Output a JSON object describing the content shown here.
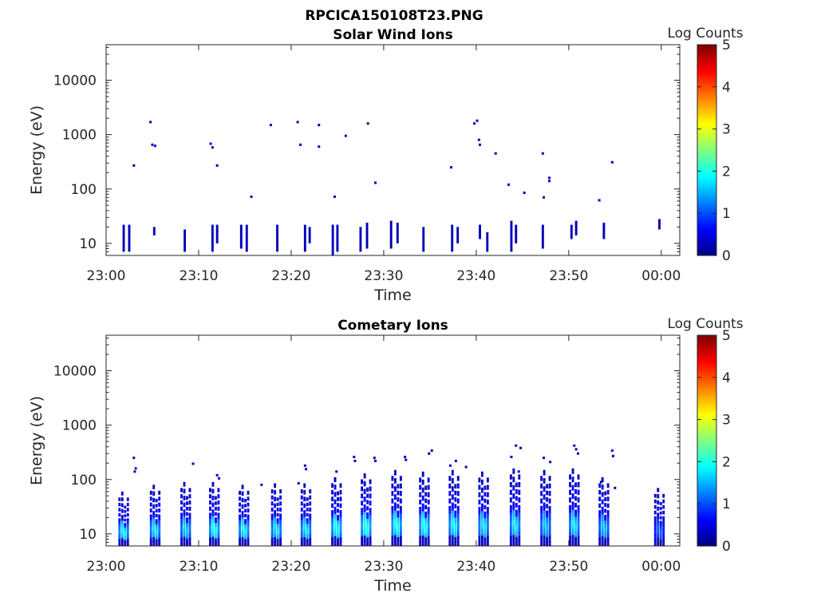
{
  "figure": {
    "title": "RPCICA150108T23.PNG"
  },
  "colors": {
    "axis": "#262626",
    "colormap": "jet"
  },
  "chart_data": [
    {
      "type": "heatmap",
      "title": "Solar Wind Ions",
      "xlabel": "Time",
      "ylabel": "Energy (eV)",
      "yscale": "log",
      "ylim": [
        6,
        45000
      ],
      "xlim_minutes": [
        0,
        62
      ],
      "xticks": [
        {
          "value": 0,
          "label": "23:00"
        },
        {
          "value": 10,
          "label": "23:10"
        },
        {
          "value": 20,
          "label": "23:20"
        },
        {
          "value": 30,
          "label": "23:30"
        },
        {
          "value": 40,
          "label": "23:40"
        },
        {
          "value": 50,
          "label": "23:50"
        },
        {
          "value": 60,
          "label": "00:00"
        }
      ],
      "yticks": [
        {
          "value": 10,
          "label": "10"
        },
        {
          "value": 100,
          "label": "100"
        },
        {
          "value": 1000,
          "label": "1000"
        },
        {
          "value": 10000,
          "label": "10000"
        }
      ],
      "colorbar": {
        "label": "Log Counts",
        "min": 0,
        "max": 5,
        "ticks": [
          {
            "value": 0,
            "label": "0"
          },
          {
            "value": 1,
            "label": "1"
          },
          {
            "value": 2,
            "label": "2"
          },
          {
            "value": 3,
            "label": "3"
          },
          {
            "value": 4,
            "label": "4"
          },
          {
            "value": 5,
            "label": "5"
          }
        ]
      },
      "bursts": [
        {
          "t": 1.9,
          "e_lo": 7,
          "e_hi": 22,
          "c": 0.3
        },
        {
          "t": 2.5,
          "e_lo": 7,
          "e_hi": 22,
          "c": 0.3
        },
        {
          "t": 5.2,
          "e_lo": 14,
          "e_hi": 20,
          "c": 0.3
        },
        {
          "t": 8.5,
          "e_lo": 7,
          "e_hi": 18,
          "c": 0.3
        },
        {
          "t": 11.5,
          "e_lo": 7,
          "e_hi": 22,
          "c": 0.3
        },
        {
          "t": 12.0,
          "e_lo": 10,
          "e_hi": 22,
          "c": 0.3
        },
        {
          "t": 14.6,
          "e_lo": 8,
          "e_hi": 22,
          "c": 0.3
        },
        {
          "t": 15.2,
          "e_lo": 7,
          "e_hi": 22,
          "c": 0.3
        },
        {
          "t": 18.5,
          "e_lo": 7,
          "e_hi": 22,
          "c": 0.3
        },
        {
          "t": 21.5,
          "e_lo": 7,
          "e_hi": 22,
          "c": 0.3
        },
        {
          "t": 22.0,
          "e_lo": 10,
          "e_hi": 20,
          "c": 0.3
        },
        {
          "t": 24.5,
          "e_lo": 6,
          "e_hi": 22,
          "c": 0.35
        },
        {
          "t": 25.0,
          "e_lo": 7,
          "e_hi": 22,
          "c": 0.3
        },
        {
          "t": 27.5,
          "e_lo": 7,
          "e_hi": 20,
          "c": 0.3
        },
        {
          "t": 28.2,
          "e_lo": 8,
          "e_hi": 24,
          "c": 0.3
        },
        {
          "t": 30.8,
          "e_lo": 8,
          "e_hi": 26,
          "c": 0.3
        },
        {
          "t": 31.5,
          "e_lo": 10,
          "e_hi": 24,
          "c": 0.3
        },
        {
          "t": 34.3,
          "e_lo": 7,
          "e_hi": 20,
          "c": 0.3
        },
        {
          "t": 37.4,
          "e_lo": 7,
          "e_hi": 22,
          "c": 0.3
        },
        {
          "t": 38.0,
          "e_lo": 10,
          "e_hi": 20,
          "c": 0.3
        },
        {
          "t": 40.4,
          "e_lo": 12,
          "e_hi": 22,
          "c": 0.3
        },
        {
          "t": 41.2,
          "e_lo": 7,
          "e_hi": 16,
          "c": 0.3
        },
        {
          "t": 43.8,
          "e_lo": 7,
          "e_hi": 26,
          "c": 0.3
        },
        {
          "t": 44.3,
          "e_lo": 10,
          "e_hi": 22,
          "c": 0.3
        },
        {
          "t": 47.2,
          "e_lo": 8,
          "e_hi": 22,
          "c": 0.3
        },
        {
          "t": 50.3,
          "e_lo": 12,
          "e_hi": 22,
          "c": 0.3
        },
        {
          "t": 50.8,
          "e_lo": 14,
          "e_hi": 26,
          "c": 0.3
        },
        {
          "t": 53.8,
          "e_lo": 12,
          "e_hi": 24,
          "c": 0.3
        },
        {
          "t": 59.8,
          "e_lo": 18,
          "e_hi": 28,
          "c": 0.3
        }
      ],
      "dots": [
        {
          "t": 3.0,
          "e": 270
        },
        {
          "t": 4.8,
          "e": 1700
        },
        {
          "t": 5.0,
          "e": 650
        },
        {
          "t": 5.3,
          "e": 620
        },
        {
          "t": 11.3,
          "e": 680
        },
        {
          "t": 11.5,
          "e": 580
        },
        {
          "t": 12.0,
          "e": 270
        },
        {
          "t": 15.7,
          "e": 72
        },
        {
          "t": 17.8,
          "e": 1500
        },
        {
          "t": 20.7,
          "e": 1700
        },
        {
          "t": 21.0,
          "e": 650
        },
        {
          "t": 23.0,
          "e": 1500
        },
        {
          "t": 23.0,
          "e": 600
        },
        {
          "t": 24.7,
          "e": 72
        },
        {
          "t": 25.9,
          "e": 950
        },
        {
          "t": 28.3,
          "e": 1600
        },
        {
          "t": 29.1,
          "e": 130
        },
        {
          "t": 37.3,
          "e": 250
        },
        {
          "t": 39.8,
          "e": 1600
        },
        {
          "t": 40.1,
          "e": 1800
        },
        {
          "t": 40.3,
          "e": 800
        },
        {
          "t": 40.4,
          "e": 650
        },
        {
          "t": 42.1,
          "e": 450
        },
        {
          "t": 43.5,
          "e": 120
        },
        {
          "t": 45.2,
          "e": 85
        },
        {
          "t": 47.2,
          "e": 450
        },
        {
          "t": 47.3,
          "e": 70
        },
        {
          "t": 47.9,
          "e": 160
        },
        {
          "t": 47.9,
          "e": 140
        },
        {
          "t": 53.3,
          "e": 62
        },
        {
          "t": 54.7,
          "e": 310
        }
      ]
    },
    {
      "type": "heatmap",
      "title": "Cometary Ions",
      "xlabel": "Time",
      "ylabel": "Energy (eV)",
      "yscale": "log",
      "ylim": [
        6,
        45000
      ],
      "xlim_minutes": [
        0,
        62
      ],
      "xticks": [
        {
          "value": 0,
          "label": "23:00"
        },
        {
          "value": 10,
          "label": "23:10"
        },
        {
          "value": 20,
          "label": "23:20"
        },
        {
          "value": 30,
          "label": "23:30"
        },
        {
          "value": 40,
          "label": "23:40"
        },
        {
          "value": 50,
          "label": "23:50"
        },
        {
          "value": 60,
          "label": "00:00"
        }
      ],
      "yticks": [
        {
          "value": 10,
          "label": "10"
        },
        {
          "value": 100,
          "label": "100"
        },
        {
          "value": 1000,
          "label": "1000"
        },
        {
          "value": 10000,
          "label": "10000"
        }
      ],
      "colorbar": {
        "label": "Log Counts",
        "min": 0,
        "max": 5,
        "ticks": [
          {
            "value": 0,
            "label": "0"
          },
          {
            "value": 1,
            "label": "1"
          },
          {
            "value": 2,
            "label": "2"
          },
          {
            "value": 3,
            "label": "3"
          },
          {
            "value": 4,
            "label": "4"
          },
          {
            "value": 5,
            "label": "5"
          }
        ]
      },
      "bursts": [
        {
          "t": 1.9,
          "peak": 1.9,
          "top": 60
        },
        {
          "t": 5.3,
          "peak": 1.8,
          "top": 80
        },
        {
          "t": 8.6,
          "peak": 1.7,
          "top": 90
        },
        {
          "t": 11.7,
          "peak": 2.0,
          "top": 90
        },
        {
          "t": 14.9,
          "peak": 1.9,
          "top": 80
        },
        {
          "t": 18.4,
          "peak": 1.8,
          "top": 85
        },
        {
          "t": 21.6,
          "peak": 1.8,
          "top": 85
        },
        {
          "t": 24.9,
          "peak": 2.0,
          "top": 110
        },
        {
          "t": 28.1,
          "peak": 2.1,
          "top": 130
        },
        {
          "t": 31.4,
          "peak": 2.0,
          "top": 150
        },
        {
          "t": 34.4,
          "peak": 2.0,
          "top": 140
        },
        {
          "t": 37.6,
          "peak": 1.9,
          "top": 150
        },
        {
          "t": 40.8,
          "peak": 1.8,
          "top": 140
        },
        {
          "t": 44.2,
          "peak": 1.8,
          "top": 160
        },
        {
          "t": 47.5,
          "peak": 1.6,
          "top": 150
        },
        {
          "t": 50.6,
          "peak": 1.8,
          "top": 160
        },
        {
          "t": 53.8,
          "peak": 1.6,
          "top": 110
        },
        {
          "t": 59.8,
          "peak": 1.1,
          "top": 70
        }
      ],
      "dots": [
        {
          "t": 3.0,
          "e": 250
        },
        {
          "t": 3.2,
          "e": 160
        },
        {
          "t": 3.1,
          "e": 140
        },
        {
          "t": 9.4,
          "e": 195
        },
        {
          "t": 12.0,
          "e": 120
        },
        {
          "t": 12.2,
          "e": 105
        },
        {
          "t": 16.8,
          "e": 80
        },
        {
          "t": 20.8,
          "e": 85
        },
        {
          "t": 21.5,
          "e": 180
        },
        {
          "t": 21.6,
          "e": 155
        },
        {
          "t": 24.9,
          "e": 140
        },
        {
          "t": 26.8,
          "e": 260
        },
        {
          "t": 26.9,
          "e": 220
        },
        {
          "t": 29.0,
          "e": 250
        },
        {
          "t": 29.1,
          "e": 220
        },
        {
          "t": 32.3,
          "e": 260
        },
        {
          "t": 32.4,
          "e": 230
        },
        {
          "t": 34.9,
          "e": 300
        },
        {
          "t": 35.2,
          "e": 340
        },
        {
          "t": 37.2,
          "e": 180
        },
        {
          "t": 37.8,
          "e": 220
        },
        {
          "t": 38.9,
          "e": 170
        },
        {
          "t": 44.3,
          "e": 420
        },
        {
          "t": 44.8,
          "e": 380
        },
        {
          "t": 43.8,
          "e": 260
        },
        {
          "t": 44.6,
          "e": 140
        },
        {
          "t": 47.3,
          "e": 250
        },
        {
          "t": 48.0,
          "e": 210
        },
        {
          "t": 50.6,
          "e": 420
        },
        {
          "t": 50.8,
          "e": 360
        },
        {
          "t": 51.0,
          "e": 300
        },
        {
          "t": 54.7,
          "e": 340
        },
        {
          "t": 54.8,
          "e": 270
        },
        {
          "t": 53.5,
          "e": 90
        },
        {
          "t": 55.0,
          "e": 70
        }
      ]
    }
  ]
}
